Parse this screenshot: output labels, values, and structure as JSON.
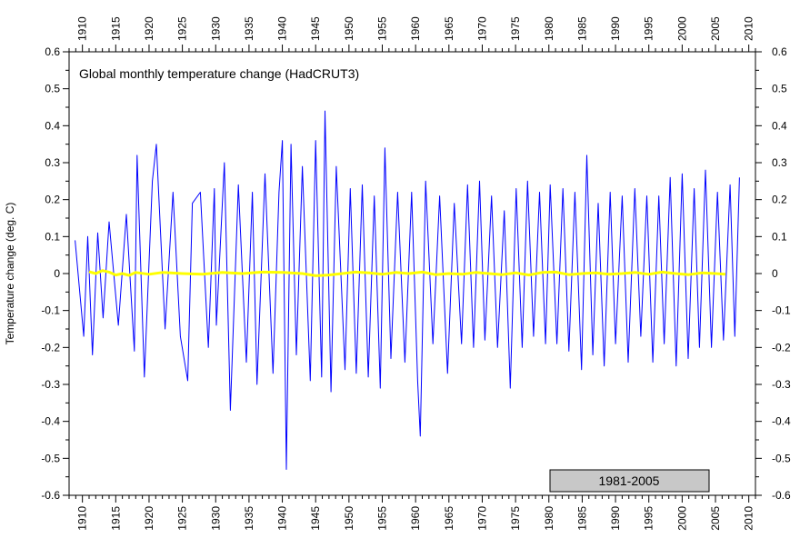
{
  "chart_data": {
    "type": "line",
    "title": "Global monthly temperature change (HadCRUT3)",
    "ylabel": "Temperature change (deg. C)",
    "xlabel": "",
    "xlim": [
      1908,
      2011
    ],
    "ylim": [
      -0.6,
      0.6
    ],
    "x_ticks": [
      1910,
      1915,
      1920,
      1925,
      1930,
      1935,
      1940,
      1945,
      1950,
      1955,
      1960,
      1965,
      1970,
      1975,
      1980,
      1985,
      1990,
      1995,
      2000,
      2005,
      2010
    ],
    "x_tick_labels": [
      "1910",
      "1915",
      "1920",
      "1925",
      "1930",
      "1935",
      "1940",
      "1945",
      "1950",
      "1955",
      "1960",
      "1965",
      "1970",
      "1975",
      "1980",
      "1985",
      "1990",
      "1995",
      "2000",
      "2005",
      "2010"
    ],
    "y_ticks": [
      -0.6,
      -0.5,
      -0.4,
      -0.3,
      -0.2,
      -0.1,
      0,
      0.1,
      0.2,
      0.3,
      0.4,
      0.5,
      0.6
    ],
    "y_tick_labels": [
      "-0.6",
      "-0.5",
      "-0.4",
      "-0.3",
      "-0.2",
      "-0.1",
      "0",
      "0.1",
      "0.2",
      "0.3",
      "0.4",
      "0.5",
      "0.6"
    ],
    "grid": false,
    "legend": {
      "label": "1981-2005",
      "placement": "bottom-right",
      "fill": "#c8c8c8"
    },
    "series": [
      {
        "color": "#0000ff",
        "x": [
          1908.9,
          1910.2,
          1910.8,
          1911.5,
          1912.3,
          1913.1,
          1914.0,
          1915.4,
          1916.6,
          1917.8,
          1918.2,
          1919.3,
          1920.5,
          1921.1,
          1922.4,
          1923.6,
          1924.7,
          1925.8,
          1926.5,
          1927.7,
          1928.9,
          1929.8,
          1930.1,
          1931.3,
          1932.2,
          1933.4,
          1934.6,
          1935.5,
          1936.2,
          1937.4,
          1938.6,
          1939.5,
          1940.0,
          1940.6,
          1941.3,
          1942.1,
          1943.0,
          1944.2,
          1945.0,
          1945.9,
          1946.4,
          1947.3,
          1948.1,
          1949.4,
          1950.2,
          1951.1,
          1952.0,
          1952.9,
          1953.8,
          1954.7,
          1955.4,
          1956.3,
          1957.3,
          1958.4,
          1959.4,
          1960.3,
          1960.7,
          1961.5,
          1962.6,
          1963.6,
          1964.8,
          1965.8,
          1966.9,
          1967.8,
          1968.7,
          1969.6,
          1970.4,
          1971.4,
          1972.3,
          1973.3,
          1974.2,
          1975.1,
          1976.0,
          1976.8,
          1977.7,
          1978.6,
          1979.5,
          1980.2,
          1981.2,
          1982.1,
          1983.0,
          1983.9,
          1984.9,
          1985.7,
          1986.6,
          1987.4,
          1988.3,
          1989.2,
          1990.0,
          1991.0,
          1991.9,
          1992.9,
          1993.8,
          1994.7,
          1995.6,
          1996.5,
          1997.3,
          1998.2,
          1999.1,
          2000.0,
          2000.9,
          2001.8,
          2002.6,
          2003.5,
          2004.4,
          2005.3,
          2006.2,
          2007.2,
          2007.9,
          2008.6
        ],
        "values": [
          0.09,
          -0.17,
          0.1,
          -0.22,
          0.11,
          -0.12,
          0.14,
          -0.14,
          0.16,
          -0.21,
          0.32,
          -0.28,
          0.25,
          0.35,
          -0.15,
          0.22,
          -0.17,
          -0.29,
          0.19,
          0.22,
          -0.2,
          0.23,
          -0.14,
          0.3,
          -0.37,
          0.24,
          -0.24,
          0.22,
          -0.3,
          0.27,
          -0.27,
          0.22,
          0.36,
          -0.53,
          0.35,
          -0.22,
          0.29,
          -0.29,
          0.36,
          -0.28,
          0.44,
          -0.32,
          0.29,
          -0.26,
          0.23,
          -0.27,
          0.24,
          -0.28,
          0.21,
          -0.31,
          0.34,
          -0.23,
          0.22,
          -0.24,
          0.22,
          -0.29,
          -0.44,
          0.25,
          -0.19,
          0.21,
          -0.27,
          0.19,
          -0.19,
          0.24,
          -0.2,
          0.25,
          -0.18,
          0.21,
          -0.2,
          0.17,
          -0.31,
          0.23,
          -0.2,
          0.25,
          -0.17,
          0.22,
          -0.19,
          0.24,
          -0.19,
          0.23,
          -0.21,
          0.22,
          -0.26,
          0.32,
          -0.22,
          0.19,
          -0.25,
          0.22,
          -0.19,
          0.21,
          -0.24,
          0.23,
          -0.17,
          0.21,
          -0.24,
          0.21,
          -0.19,
          0.26,
          -0.25,
          0.27,
          -0.23,
          0.23,
          -0.2,
          0.28,
          -0.2,
          0.22,
          -0.18,
          0.24,
          -0.17,
          0.26
        ]
      },
      {
        "color": "#ffff00",
        "x": [
          1911.0,
          1912.0,
          1913.0,
          1914.0,
          1915.0,
          1916.0,
          1917.0,
          1918.0,
          1920.0,
          1922.0,
          1925.0,
          1928.0,
          1931.0,
          1934.0,
          1937.0,
          1940.0,
          1943.0,
          1945.0,
          1947.0,
          1949.0,
          1951.0,
          1953.0,
          1955.0,
          1957.0,
          1959.0,
          1961.0,
          1963.0,
          1965.0,
          1967.0,
          1969.0,
          1971.0,
          1973.0,
          1975.0,
          1977.0,
          1979.0,
          1981.0,
          1983.0,
          1985.0,
          1987.0,
          1989.0,
          1991.0,
          1993.0,
          1995.0,
          1997.0,
          1999.0,
          2001.0,
          2003.0,
          2005.0,
          2006.5
        ],
        "values": [
          0.005,
          0.0,
          0.008,
          0.004,
          -0.004,
          0.0,
          -0.005,
          0.003,
          -0.002,
          0.003,
          0.0,
          -0.002,
          0.003,
          0.0,
          0.004,
          0.003,
          0.0,
          -0.006,
          -0.004,
          0.0,
          0.004,
          0.002,
          -0.002,
          0.003,
          0.0,
          0.004,
          -0.003,
          0.0,
          -0.002,
          0.003,
          0.0,
          -0.003,
          0.002,
          -0.004,
          0.003,
          0.004,
          -0.003,
          0.0,
          0.002,
          -0.002,
          0.0,
          0.003,
          -0.002,
          0.004,
          0.0,
          -0.003,
          0.002,
          0.0,
          -0.002
        ]
      }
    ]
  }
}
